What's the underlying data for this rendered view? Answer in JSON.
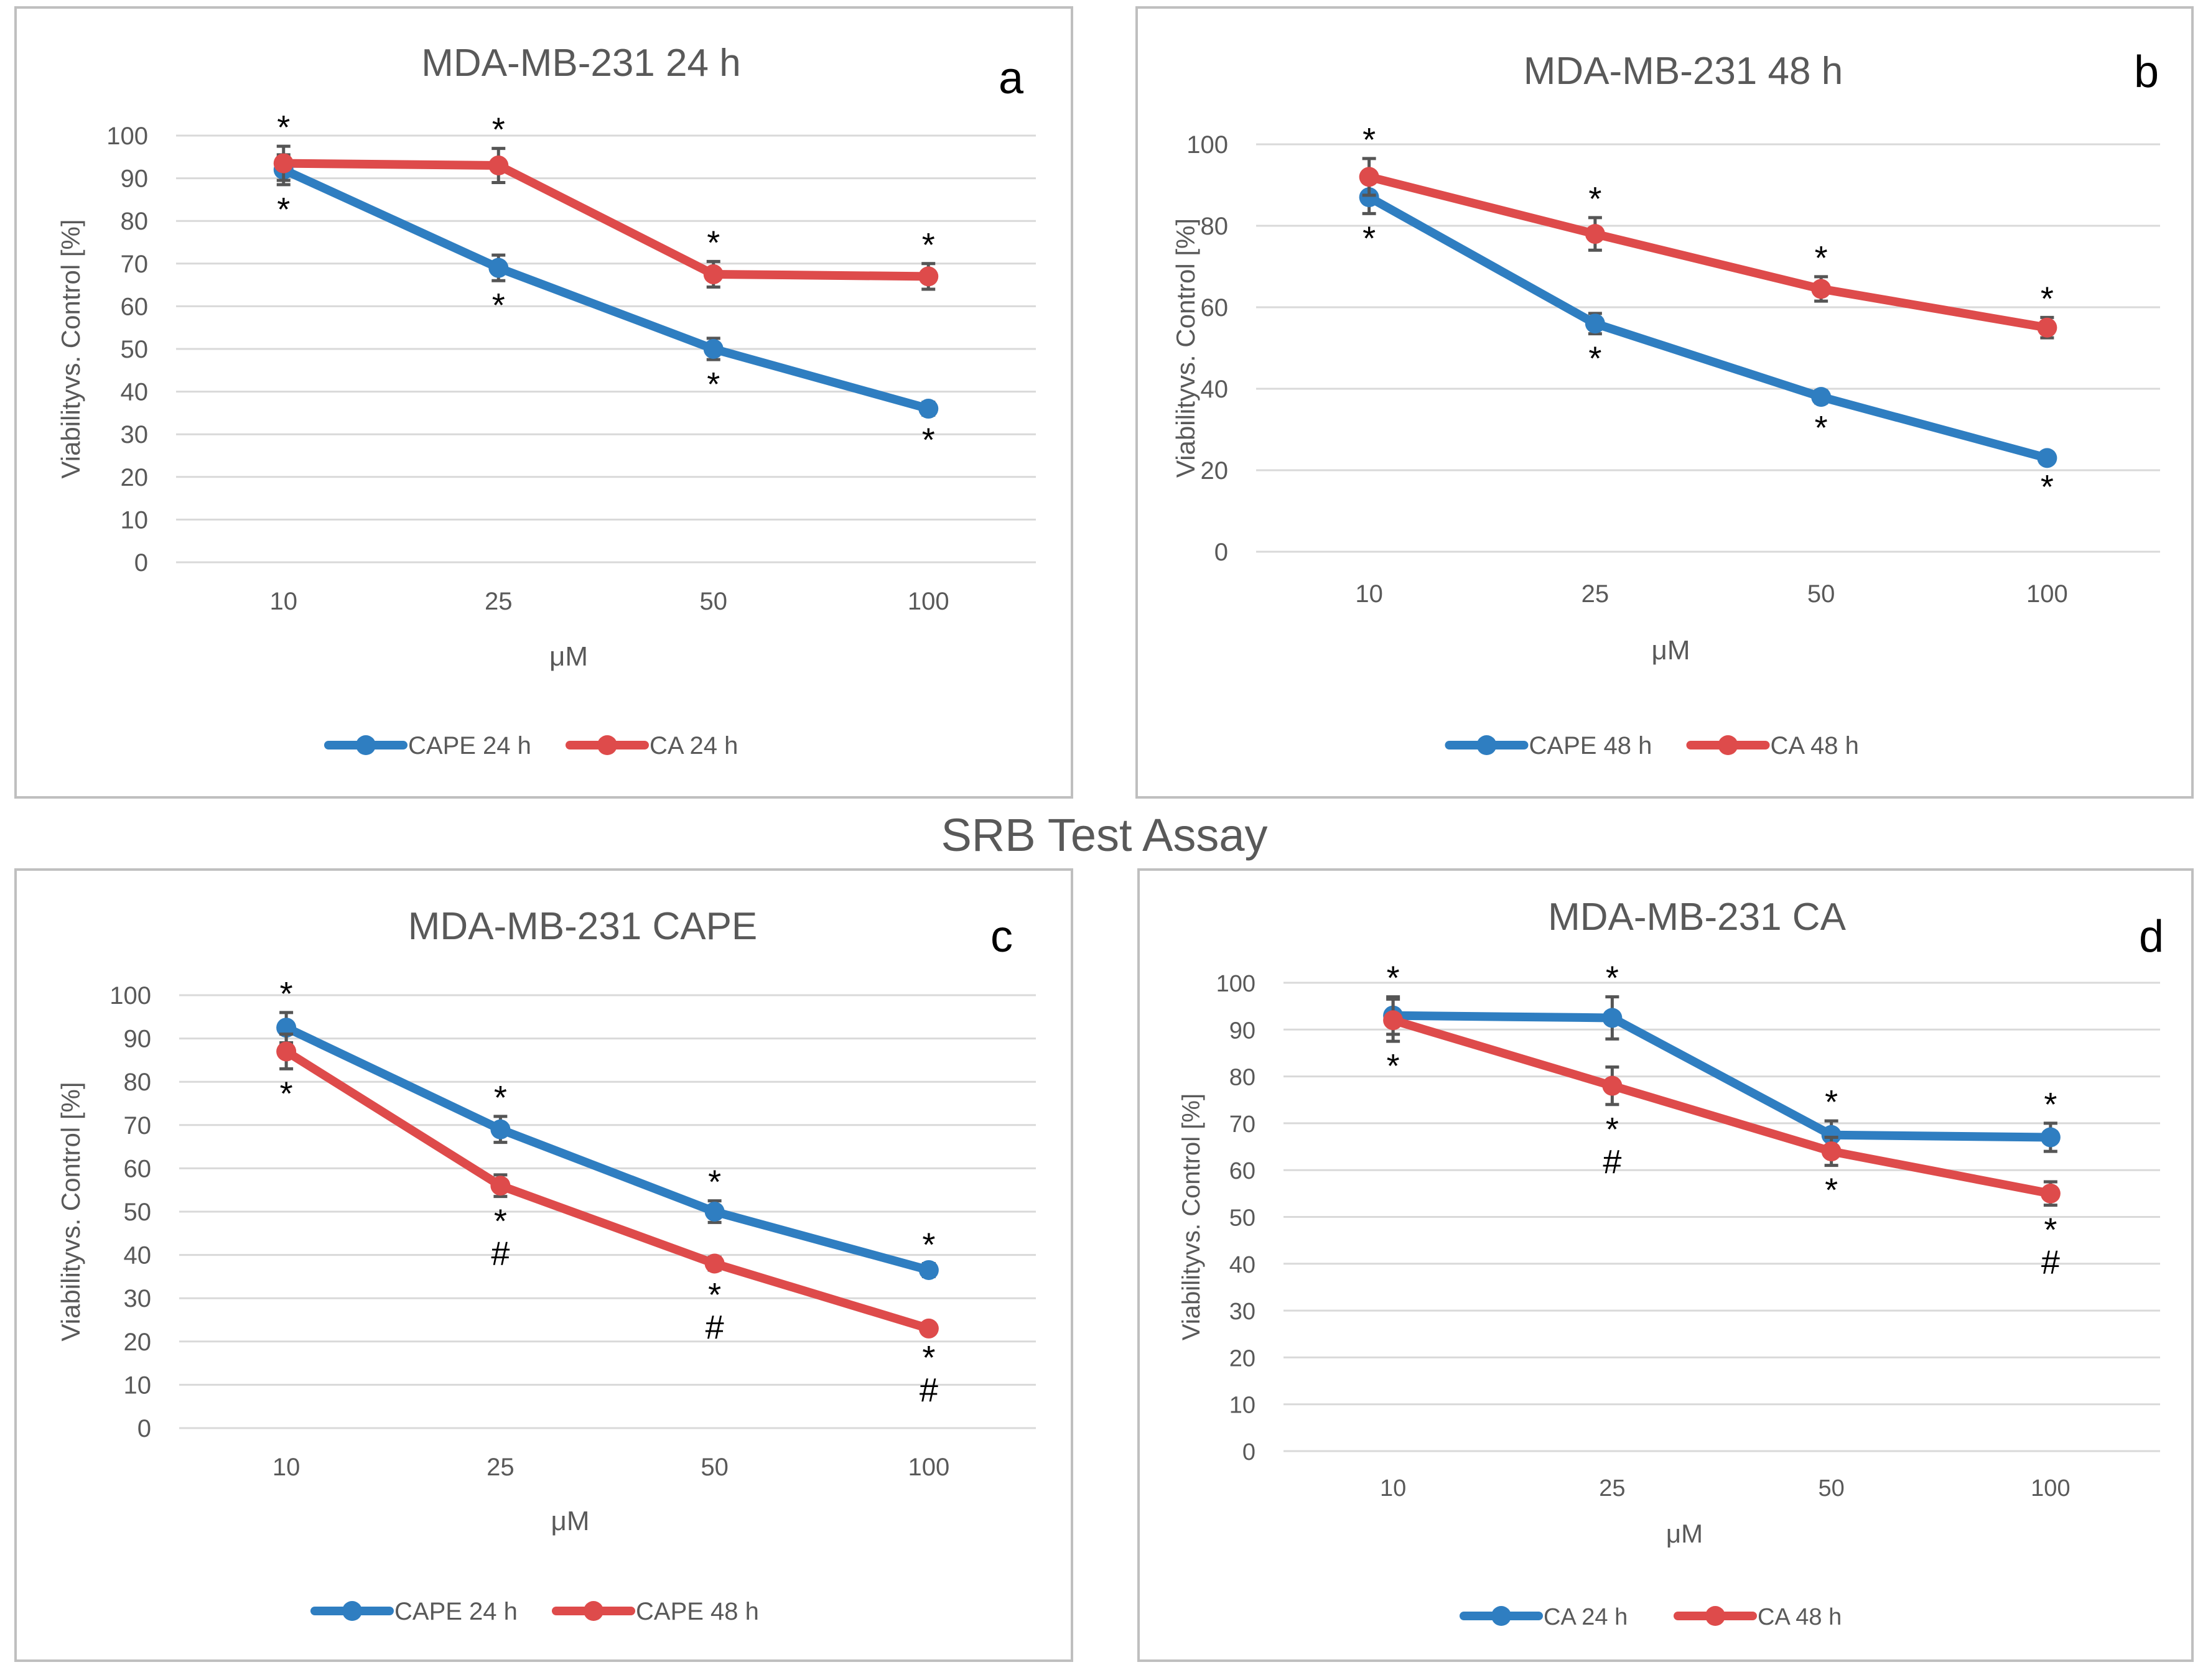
{
  "figure_title": "SRB Test Assay",
  "colors": {
    "blue": "#2F7EC1",
    "red": "#DE4B4B",
    "grid": "#D9D9D9",
    "text": "#595959",
    "frame": "#BFBFBF",
    "errorbar": "#555555"
  },
  "chart_data": [
    {
      "panel": "a",
      "type": "line",
      "title": "MDA-MB-231 24 h",
      "xlabel": "μM",
      "ylabel": "Viabilityvs. Control [%]",
      "categories": [
        "10",
        "25",
        "50",
        "100"
      ],
      "ylim": [
        0,
        100
      ],
      "yticks": [
        "0",
        "10",
        "20",
        "30",
        "40",
        "50",
        "60",
        "70",
        "80",
        "90",
        "100"
      ],
      "grid": true,
      "legend": "bottom-center",
      "series": [
        {
          "name": "CAPE 24 h",
          "color": "#2F7EC1",
          "values": [
            92,
            69,
            50,
            36
          ],
          "errors": [
            3.5,
            3,
            2.5,
            1.5
          ],
          "marks_above": [
            "",
            "",
            "",
            ""
          ],
          "marks_below": [
            "*",
            "*",
            "*",
            "*"
          ]
        },
        {
          "name": "CA 24 h",
          "color": "#DE4B4B",
          "values": [
            93.5,
            93,
            67.5,
            67
          ],
          "errors": [
            4,
            4,
            3,
            3
          ],
          "marks_above": [
            "*",
            "*",
            "*",
            "*"
          ],
          "marks_below": [
            "",
            "",
            "",
            ""
          ]
        }
      ]
    },
    {
      "panel": "b",
      "type": "line",
      "title": "MDA-MB-231 48 h",
      "xlabel": "μM",
      "ylabel": "Viabilityvs. Control [%]",
      "categories": [
        "10",
        "25",
        "50",
        "100"
      ],
      "ylim": [
        0,
        100
      ],
      "yticks": [
        "0",
        "20",
        "40",
        "60",
        "80",
        "100"
      ],
      "grid": true,
      "legend": "bottom-center",
      "series": [
        {
          "name": "CAPE 48 h",
          "color": "#2F7EC1",
          "values": [
            87,
            56,
            38,
            23
          ],
          "errors": [
            4,
            2.5,
            1.5,
            1
          ],
          "marks_above": [
            "",
            "",
            "",
            ""
          ],
          "marks_below": [
            "*",
            "*",
            "*",
            "*"
          ]
        },
        {
          "name": "CA 48 h",
          "color": "#DE4B4B",
          "values": [
            92,
            78,
            64.5,
            55
          ],
          "errors": [
            4.5,
            4,
            3,
            2.5
          ],
          "marks_above": [
            "*",
            "*",
            "*",
            "*"
          ],
          "marks_below": [
            "",
            "",
            "",
            ""
          ]
        }
      ]
    },
    {
      "panel": "c",
      "type": "line",
      "title": "MDA-MB-231 CAPE",
      "xlabel": "μM",
      "ylabel": "Viabilityvs. Control [%]",
      "categories": [
        "10",
        "25",
        "50",
        "100"
      ],
      "ylim": [
        0,
        100
      ],
      "yticks": [
        "0",
        "10",
        "20",
        "30",
        "40",
        "50",
        "60",
        "70",
        "80",
        "90",
        "100"
      ],
      "grid": true,
      "legend": "bottom-center",
      "series": [
        {
          "name": "CAPE 24 h",
          "color": "#2F7EC1",
          "values": [
            92.5,
            69,
            50,
            36.5
          ],
          "errors": [
            3.5,
            3,
            2.5,
            1.5
          ],
          "marks_above": [
            "*",
            "*",
            "*",
            "*"
          ],
          "marks_below": [
            "",
            "",
            "",
            ""
          ]
        },
        {
          "name": "CAPE 48 h",
          "color": "#DE4B4B",
          "values": [
            87,
            56,
            38,
            23
          ],
          "errors": [
            4,
            2.5,
            1.5,
            1
          ],
          "marks_above": [
            "",
            "",
            "",
            ""
          ],
          "marks_below": [
            "*",
            "*\n#",
            "*\n#",
            "*\n#"
          ]
        }
      ]
    },
    {
      "panel": "d",
      "type": "line",
      "title": "MDA-MB-231 CA",
      "xlabel": "μM",
      "ylabel": "Viabilityvs. Control [%]",
      "categories": [
        "10",
        "25",
        "50",
        "100"
      ],
      "ylim": [
        0,
        100
      ],
      "yticks": [
        "0",
        "10",
        "20",
        "30",
        "40",
        "50",
        "60",
        "70",
        "80",
        "90",
        "100"
      ],
      "grid": true,
      "legend": "bottom-center",
      "series": [
        {
          "name": "CA 24 h",
          "color": "#2F7EC1",
          "values": [
            93,
            92.5,
            67.5,
            67
          ],
          "errors": [
            4,
            4.5,
            3,
            3
          ],
          "marks_above": [
            "*",
            "*",
            "*",
            "*"
          ],
          "marks_below": [
            "",
            "",
            "",
            ""
          ]
        },
        {
          "name": "CA 48 h",
          "color": "#DE4B4B",
          "values": [
            92,
            78,
            64,
            55
          ],
          "errors": [
            4.5,
            4,
            3,
            2.5
          ],
          "marks_above": [
            "",
            "",
            "",
            ""
          ],
          "marks_below": [
            "*",
            "*\n#",
            "*",
            "*\n#"
          ]
        }
      ]
    }
  ]
}
